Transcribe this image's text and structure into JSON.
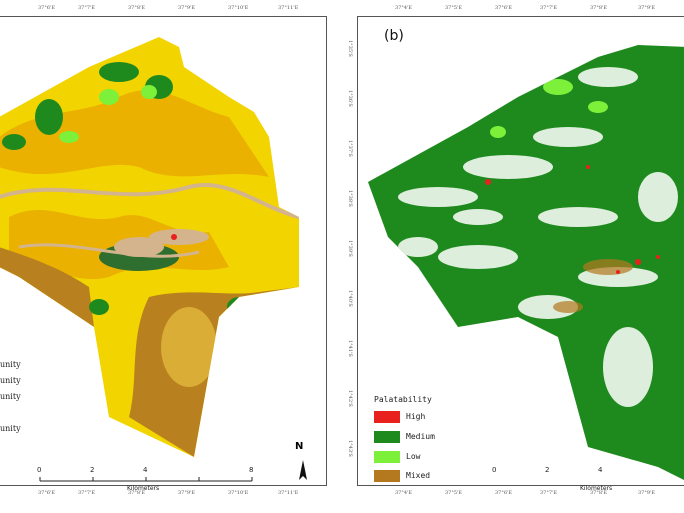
{
  "panel_b_label": "(b)",
  "top_ticks_a": [
    "37°6'E",
    "37°7'E",
    "37°8'E",
    "37°9'E",
    "37°10'E",
    "37°11'E"
  ],
  "bottom_ticks_a": [
    "37°6'E",
    "37°7'E",
    "37°8'E",
    "37°9'E",
    "37°10'E",
    "37°11'E"
  ],
  "top_ticks_b": [
    "37°4'E",
    "37°5'E",
    "37°6'E",
    "37°7'E",
    "37°8'E",
    "37°9'E"
  ],
  "bottom_ticks_b": [
    "37°4'E",
    "37°5'E",
    "37°6'E",
    "37°7'E",
    "37°8'E",
    "37°9'E"
  ],
  "lat_ticks": [
    "1°35'S",
    "1°36'S",
    "1°37'S",
    "1°38'S",
    "1°39'S",
    "1°40'S",
    "1°41'S",
    "1°42'S",
    "1°43'S"
  ],
  "legend_a_items": [
    "unity",
    "unity",
    "unity",
    "unity"
  ],
  "legend_b": {
    "title": "Palatability",
    "items": [
      {
        "label": "High",
        "color": "#e8201e"
      },
      {
        "label": "Medium",
        "color": "#1e8a1e"
      },
      {
        "label": "Low",
        "color": "#7df03a"
      },
      {
        "label": "Mixed",
        "color": "#b4781e"
      }
    ]
  },
  "scale_a": {
    "title": "Kilometers",
    "labels": [
      "0",
      "2",
      "4",
      "8"
    ]
  },
  "scale_b": {
    "title": "Kilometers",
    "labels": [
      "0",
      "2",
      "4"
    ]
  },
  "north_label": "N",
  "colors": {
    "yellow": "#f2d400",
    "orange": "#e8a800",
    "brown": "#b8801e",
    "green": "#1e8a1e",
    "lightgreen": "#7df03a",
    "tan": "#d4b48c"
  }
}
